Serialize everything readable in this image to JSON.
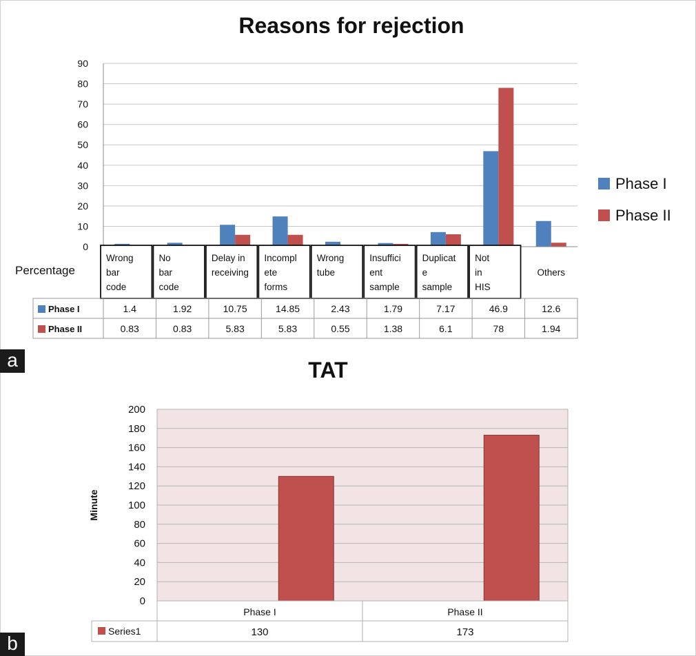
{
  "panels": {
    "a": "a",
    "b": "b"
  },
  "chart_data": [
    {
      "type": "bar",
      "title": "Reasons for rejection",
      "row_header": "Percentage",
      "categories": [
        [
          "Wrong",
          "bar",
          "code"
        ],
        [
          "No",
          "bar",
          "code"
        ],
        [
          "Delay in",
          "receiving"
        ],
        [
          "Incompl",
          "ete",
          "forms"
        ],
        [
          "Wrong",
          "tube"
        ],
        [
          "Insuffici",
          "ent",
          "sample"
        ],
        [
          "Duplicat",
          "e",
          "sample"
        ],
        [
          "Not",
          "in",
          "HIS"
        ],
        [
          "Others"
        ]
      ],
      "series": [
        {
          "name": "Phase I",
          "table_name": "Phase I",
          "color": "#4f81bd",
          "values": [
            1.4,
            1.92,
            10.75,
            14.85,
            2.43,
            1.79,
            7.17,
            46.9,
            12.6
          ]
        },
        {
          "name": "Phase II",
          "table_name": "Phase II",
          "color": "#c0504d",
          "values": [
            0.83,
            0.83,
            5.83,
            5.83,
            0.55,
            1.38,
            6.1,
            78,
            1.94
          ]
        }
      ],
      "table_values": [
        [
          "1.4",
          "1.92",
          "10.75",
          "14.85",
          "2.43",
          "1.79",
          "7.17",
          "46.9",
          "12.6"
        ],
        [
          "0.83",
          "0.83",
          "5.83",
          "5.83",
          "0.55",
          "1.38",
          "6.1",
          "78",
          "1.94"
        ]
      ],
      "ylim": [
        0,
        90
      ],
      "yticks": [
        0,
        10,
        20,
        30,
        40,
        50,
        60,
        70,
        80,
        90
      ],
      "grid": true,
      "legend": "right"
    },
    {
      "type": "bar",
      "title": "TAT",
      "ylabel": "Minute",
      "categories": [
        "Phase I",
        "Phase II"
      ],
      "series": [
        {
          "name": "Series1",
          "color": "#c0504d",
          "values": [
            130,
            173
          ]
        }
      ],
      "table_values": [
        [
          "130",
          "173"
        ]
      ],
      "ylim": [
        0,
        200
      ],
      "yticks": [
        0,
        20,
        40,
        60,
        80,
        100,
        120,
        140,
        160,
        180,
        200
      ],
      "grid": true,
      "legend": "table"
    }
  ]
}
